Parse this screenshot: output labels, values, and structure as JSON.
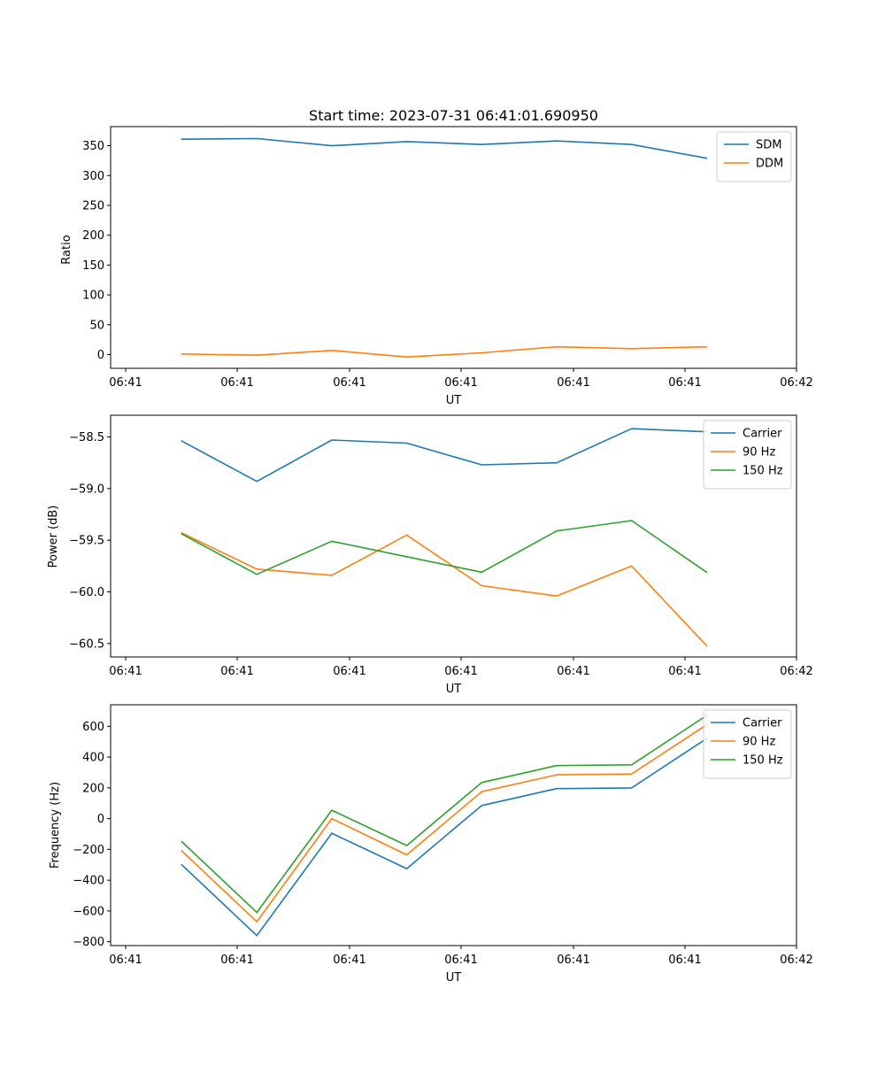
{
  "chart_data": [
    {
      "type": "line",
      "title": "Start time: 2023-07-31 06:41:01.690950",
      "xlabel": "UT",
      "ylabel": "Ratio",
      "x_tick_labels": [
        "06:41",
        "06:41",
        "06:41",
        "06:41",
        "06:41",
        "06:41",
        "06:42"
      ],
      "x": [
        1,
        2,
        3,
        4,
        5,
        6,
        7,
        8
      ],
      "xlim": [
        0.05,
        9.2
      ],
      "ylim": [
        -23,
        382
      ],
      "yticks": [
        0,
        50,
        100,
        150,
        200,
        250,
        300,
        350
      ],
      "legend_position": "top-right",
      "series": [
        {
          "name": "SDM",
          "color": "#1f77b4",
          "values": [
            361,
            362,
            350,
            357,
            352,
            358,
            352,
            329
          ]
        },
        {
          "name": "DDM",
          "color": "#ff7f0e",
          "values": [
            1,
            -1,
            7,
            -4,
            3,
            13,
            10,
            13
          ]
        }
      ]
    },
    {
      "type": "line",
      "title": "",
      "xlabel": "UT",
      "ylabel": "Power (dB)",
      "x_tick_labels": [
        "06:41",
        "06:41",
        "06:41",
        "06:41",
        "06:41",
        "06:41",
        "06:42"
      ],
      "x": [
        1,
        2,
        3,
        4,
        5,
        6,
        7,
        8
      ],
      "xlim": [
        0.05,
        9.2
      ],
      "ylim": [
        -60.63,
        -58.29
      ],
      "yticks": [
        -60.5,
        -60.0,
        -59.5,
        -59.0,
        -58.5
      ],
      "legend_position": "top-right",
      "series": [
        {
          "name": "Carrier",
          "color": "#1f77b4",
          "values": [
            -58.54,
            -58.93,
            -58.53,
            -58.56,
            -58.77,
            -58.75,
            -58.42,
            -58.45
          ]
        },
        {
          "name": "90 Hz",
          "color": "#ff7f0e",
          "values": [
            -59.43,
            -59.78,
            -59.84,
            -59.45,
            -59.94,
            -60.04,
            -59.75,
            -60.52
          ]
        },
        {
          "name": "150 Hz",
          "color": "#2ca02c",
          "values": [
            -59.44,
            -59.83,
            -59.51,
            -59.66,
            -59.81,
            -59.41,
            -59.31,
            -59.81
          ]
        }
      ]
    },
    {
      "type": "line",
      "title": "",
      "xlabel": "UT",
      "ylabel": "Frequency (Hz)",
      "x_tick_labels": [
        "06:41",
        "06:41",
        "06:41",
        "06:41",
        "06:41",
        "06:41",
        "06:42"
      ],
      "x": [
        1,
        2,
        3,
        4,
        5,
        6,
        7,
        8
      ],
      "xlim": [
        0.05,
        9.2
      ],
      "ylim": [
        -825,
        740
      ],
      "yticks": [
        -800,
        -600,
        -400,
        -200,
        0,
        200,
        400,
        600
      ],
      "legend_position": "top-right",
      "series": [
        {
          "name": "Carrier",
          "color": "#1f77b4",
          "values": [
            -300,
            -760,
            -95,
            -325,
            85,
            195,
            200,
            520
          ]
        },
        {
          "name": "90 Hz",
          "color": "#ff7f0e",
          "values": [
            -210,
            -670,
            0,
            -235,
            175,
            285,
            290,
            610
          ]
        },
        {
          "name": "150 Hz",
          "color": "#2ca02c",
          "values": [
            -150,
            -610,
            55,
            -175,
            235,
            345,
            350,
            670
          ]
        }
      ]
    }
  ]
}
